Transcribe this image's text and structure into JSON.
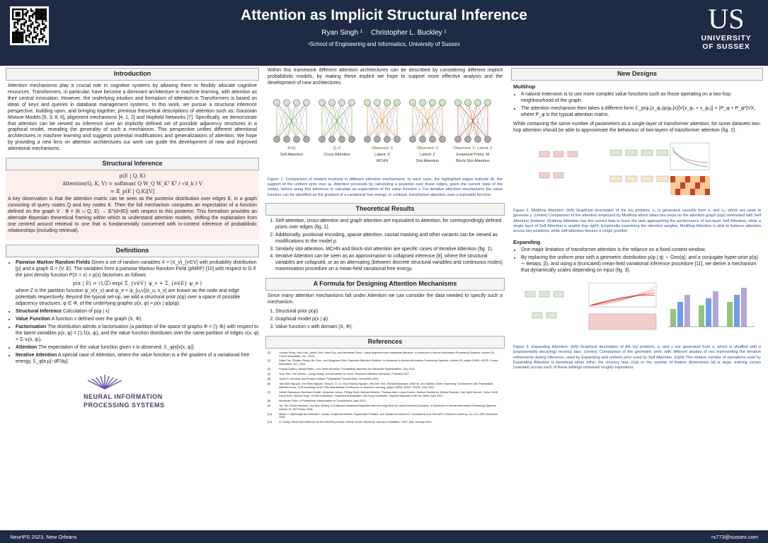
{
  "header": {
    "title": "Attention as Implicit Structural Inference",
    "authors": [
      "Ryan Singh ¹",
      "Christopher L. Buckley ¹"
    ],
    "affiliation": "¹School of Engineering and Informatics, University of Sussex",
    "logo_mark": "US",
    "logo_name": [
      "UNIVERSITY",
      "OF SUSSEX"
    ]
  },
  "columns": [
    {
      "sections": [
        {
          "heading": "Introduction",
          "blocks": [
            {
              "p": "Attention mechanisms play a crucial role in cognitive systems by allowing them to flexibly allocate cognitive resources. Transformers, in particular, have become a dominant architecture in machine learning, with attention as their central innovation. However, the underlying intuition and formalism of attention in Transformers is based on ideas of keys and queries in database management systems. In this work, we pursue a structural inference perspective, building upon, and bringing together, previous theoretical descriptions of attention such as; Gaussian Mixture Models [5, 3, 8, 6], alignment mechanisms [4, 1, 2] and Hopfield Networks [7]. Specifically, we demonstrate that attention can be viewed as inference over an implicitly defined set of possible adjacency structures in a graphical model, revealing the generality of such a mechanism. This perspective unifies different attentional architectures in machine learning and suggests potential modifications and generalizations of attention. We hope by providing a new lens on attention architectures our work can guide the development of new and improved attentional mechanisms."
            }
          ]
        },
        {
          "heading": "Structural Inference",
          "blocks": [
            {
              "eq": [
                "p(E | Q, K)",
                "Attention(Q, K, V) = softmax( Q W_Q W_Kᵀ Kᵀ / √d_k ) V",
                "= 𝔼_p(E | Q,K)[V]"
              ]
            },
            {
              "p": "A key observation is that the attention matrix can be seen as the posterior distribution over edges E, in a graph consisting of query nodes Q and key nodes K. Then the full mechanism computes an expectation of a function defined on the graph V : 𝒢 = (K ∪ Q, E) → ℝ^(d×|E|) with respect to this posterior. This formalism provides an alternate Bayesian theoretical framing within which to understand attention models, shifting the explanation from one centred around retrieval to one that is fundamentally concerned with in-context inference of probabilistic relationships (including retrieval)."
            }
          ]
        },
        {
          "heading": "Definitions",
          "blocks": [
            {
              "bullets": [
                {
                  "term": "Pairwise Markov Random Fields",
                  "text": "Given a set of random variables X = (X_v)_{v∈V} with probability distribution [p] and a graph G = (V, E). The variables form a pairwise Markov Random Field (pMRF) [10] with respect to G if the joint density function P(X = x) = p(x) factorises as follows",
                  "eq": "p(x | E) = (1/Z) exp( Σ_{v∈V} ψ_v + Σ_{e∈E} ψ_e )",
                  "after": "where Z is the partition function ψ_v(x_v) and ψ_e = ψ_{u,v}(x_u, x_v) are known as the node and edge potentials respectively. Beyond the typical set-up, we add a structural prior p(φ) over a space of possible adjacency structures, φ ∈ Φ, of the underlying graphic p(x, φ) = p(x | φ)p(φ)."
                },
                {
                  "term": "Structural Inference",
                  "text": "Calculation of p(φ | x)"
                },
                {
                  "term": "Value Function",
                  "text": "A function v defined over the graph (X, Φ)."
                },
                {
                  "term": "Factorisation",
                  "text": "The distribution admits a factorisation (a partition of the space of graphs Φ = ∏ᵢ Φᵢ) with respect to the latent variables p(x, φ) = ∏ᵢ fᵢ(x, φᵢ), and the value function distributes over the same partition of edges v(x, φ) = Σᵢ vᵢ(x, φᵢ)."
                },
                {
                  "term": "Attention",
                  "text": "The expectation of the value function given x is observed, 𝔼_φ|x[v(x, φ)]."
                },
                {
                  "term": "Iterative Attention",
                  "text": "A special case of Attention, where the value function is a the gradient of a variational free energy, 𝔼_φ|x,μ[−∂F/∂μ]."
                }
              ]
            },
            {
              "logo": [
                "NEURAL INFORMATION",
                "PROCESSING SYSTEMS"
              ]
            }
          ]
        }
      ]
    },
    {
      "sections": [
        {
          "blocks": [
            {
              "p": "Within this framework different attention architectures can be described by considering different implicit probabilistic models, by making these explicit we hope to support more effective analysis and the development of new architectures."
            },
            {
              "figure": {
                "panels": [
                  [
                    "K=Q",
                    "Self Attention"
                  ],
                  [
                    "Q, K",
                    "Cross Attention"
                  ],
                  [
                    "Observed: X",
                    "Latent: Z",
                    "MCHN"
                  ],
                  [
                    "Observed: X",
                    "Latent: Z",
                    "Slot Attention"
                  ],
                  [
                    "Observed: X, Latent: Z",
                    "Empirical Priors: M",
                    "Block-Slot Attention"
                  ]
                ],
                "caption": "Figure 1. Comparison of models involved in different attention mechanisms. In each case, the highlighted edges indicate Φᵢ, the support of the uniform prior over φᵢ. Attention proceeds by calculating a posterior over these edges, given the current state of the nodes, before using this inference to calculate an expectation of the value function v. For iterative attention mechanisms the value function can be identified as the gradient of a variational free energy, in contrast, transformer attention uses a learnable function."
              }
            }
          ]
        },
        {
          "heading": "Theoretical Results",
          "blocks": [
            {
              "ol": [
                "Self-attention, cross-attention and graph attention are equivalent to Attention, for correspondingly defined priors over edges (fig. 1).",
                "Additionally, positional encoding, sparse attention, causal masking and other variants can be viewed as modifications to the model p.",
                "Similarly slot-attention, MCHN and block-slot attention are specific cases of Iterative Attention (fig. 1).",
                "Iterative Attention can be seen as an approximation to collapsed inference [9], where the structural variables are collapsed, or as an alternating (between discrete structural variables and continuous nodes) maximisation procedure on a mean-field variational free energy."
              ]
            }
          ]
        },
        {
          "heading": "A Formula for Designing Attention Mechanisms",
          "blocks": [
            {
              "p": "Since many attention mechanisms fall under Attention we can consider the data needed to specify such a mechanism."
            },
            {
              "ol": [
                "Structural prior p(φ).",
                "Graphical model p(x | φ).",
                "Value function v with domain (X, Φ)."
              ]
            }
          ]
        },
        {
          "heading": "References",
          "blocks": [
            {
              "refs": [
                {
                  "label": "[1]",
                  "text": "Yuntian Deng, Yoon Kim, Justin Chiu, Demi Guo, and Alexander Rush. Latent Alignment and Variational Attention. In Advances in Neural Information Processing Systems, volume 31. Curran Associates, Inc., 2018."
                },
                {
                  "label": "[2]",
                  "text": "Xinjie Fan, Shujian Zhang, Bo Chen, and Mingyuan Zhou. Bayesian Attention Modules. In Advances in Neural Information Processing Systems, volume 33, pages 16362–16376. Curran Associates, Inc., 2020."
                },
                {
                  "label": "[3]",
                  "text": "Prasad Gabbur, Manjot Bilkhu, and Javier Movellan. Probabilistic Attention for Interactive Segmentation, July 2021."
                },
                {
                  "label": "[4]",
                  "text": "Yoon Kim, Carl Denton, Luong Hoang, and Alexander M. Rush. Structured Attention Networks, February 2017."
                },
                {
                  "label": "[5]",
                  "text": "Javier R. Movellan and Prasad Gabbur. Probabilistic Transformers, November 2020."
                },
                {
                  "label": "[6]",
                  "text": "Tam Minh Nguyen, Tan Minh Nguyen, Dung D. D. Le, Duy Khuong Nguyen, Viet-Anh Tran, Richard Baraniuk, Nhat Ho, and Stanley Osher. Improving Transformers with Probabilistic Attention Keys. In Proceedings of the 39th International Conference on Machine Learning, pages 16595–16621. PMLR, June 2022."
                },
                {
                  "label": "[7]",
                  "text": "Hubert Ramsauer, Bernhard Schäfl, Johannes Lehner, Philipp Seidl, Michael Widrich, Thomas Adler, Lukas Gruber, Markus Holzleitner, Milena Pavlović, Geir Kjetil Sandve, Victor Greiff, David Kreil, Michael Kopp, Günter Klambauer, Johannes Brandstetter, and Sepp Hochreiter. Hopfield Networks is All You Need, April 2021."
                },
                {
                  "label": "[8]",
                  "text": "Alexander Shim. A Probabilistic Interpretation of Transformers, April 2022."
                },
                {
                  "label": "[9]",
                  "text": "Yee Teh, David Newman, and Max Welling. A Collapsed Variational Bayesian Inference Algorithm for Latent Dirichlet Allocation. In Advances in Neural Information Processing Systems, volume 19. MIT Press, 2006."
                },
                {
                  "label": "[10]",
                  "text": "Martin J. Wainwright and Michael I. Jordan. Graphical Models, Exponential Families, and Variational Inference. Foundations and Trends® in Machine Learning, 1(1–2):1–305, November 2008."
                },
                {
                  "label": "[11]",
                  "text": "O. Zobay. Mean field inference for the Dirichlet process mixture model. Electronic Journal of Statistics, 3:507–545, January 2009."
                }
              ]
            }
          ]
        }
      ]
    },
    {
      "sections": [
        {
          "heading": "New Designs",
          "blocks": [
            {
              "sub": "Multihop"
            },
            {
              "bullets": [
                "A natural extension is to use more complex value functions such as those operating on a two-hop neighbourhood of the graph.",
                "The attention mechanism then takes a different form 𝔼_p(φ₁|x_φ₂)p(φ₂|x)[V(x_φ₁ + x_φ₂)] = (P_φ + P_φ²)VX, where P_φ is the typical attention matrix."
              ]
            },
            {
              "p": "While containing the same number of parameters as a single-layer of transformer attention, for some datasets two-hop attention should be able to approximate the behaviour of two-layers of transformer attention (fig. 2)."
            },
            {
              "figure": {
                "caption": "Figure 2. Multihop Attention: (left) Graphical description of the toy problem, x₂ is generated causally from x₁ and x₀, which are used to generate y. (centre) Comparison of the attention employed by Multihop which takes two steps on the attention graph (top) contrasted with Self Attention (bottom). Multihop Attention has the correct bias to learn the task approaching the performance of two-layer Self Attention, while a single layer of Self Attention is unable (top right). Empirically examining the attention weights, Multihop Attention is able to balance attention across two positions, while self-attention favours a single position."
              }
            },
            {
              "sub": "Expanding"
            },
            {
              "bullets": [
                "One major limitation of transformer attention is the reliance on a fixed context window.",
                "By replacing the uniform prior with a geometric distribution p(φ | q) ∼ Geo(q), and a conjugate hyper-prior p(q) ∼ Beta(α, β), and using a (truncated) mean-field variational inference procedure [11], we derive a mechanism that dynamically scales depending on input (fig. 3)."
              ]
            },
            {
              "figure": {
                "caption": "Figure 3. Expanding Attention: (left) Graphical description of the toy problem, x₂ and y are generated from x₁ which is shuffled with a (exponentially decaying) recency bias. (centre) Comparison of the geometric prior, with different shades of red representing the iterative refinements during inference, used by Expanding and uniform prior used by Self Attention. (right) The relative number of operations used by Expanding Attention is beneficial when either the recency bias (1/p) or the number of feature dimensions (d) is large, training curves (overlaid) across each of these settings remained roughly equivalent."
              }
            }
          ]
        }
      ]
    }
  ],
  "footer": {
    "venue": "NeurIPS 2023, New Orleans",
    "email": "rs773@sussex.com"
  }
}
